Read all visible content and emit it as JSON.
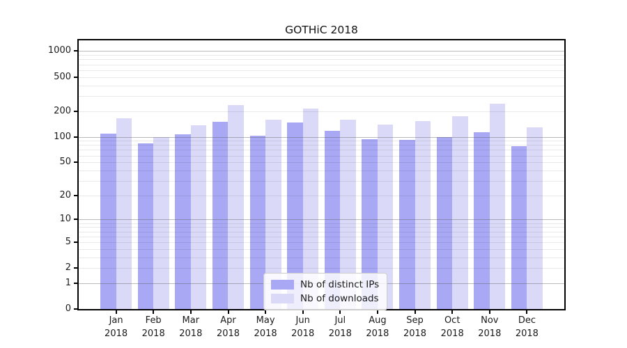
{
  "chart_data": {
    "type": "bar",
    "title": "GOTHiC 2018",
    "scale": "log1p",
    "grid": "on",
    "legend_position": "lower center",
    "categories": [
      "Jan",
      "Feb",
      "Mar",
      "Apr",
      "May",
      "Jun",
      "Jul",
      "Aug",
      "Sep",
      "Oct",
      "Nov",
      "Dec"
    ],
    "category_year": "2018",
    "series": [
      {
        "name": "Nb of distinct IPs",
        "color": "#a8a8f5",
        "values": [
          108,
          84,
          107,
          149,
          102,
          148,
          117,
          94,
          92,
          100,
          113,
          78
        ]
      },
      {
        "name": "Nb of downloads",
        "color": "#dadaf8",
        "values": [
          165,
          99,
          136,
          237,
          158,
          213,
          159,
          138,
          152,
          175,
          245,
          130
        ]
      }
    ],
    "y_ticks": [
      0,
      1,
      2,
      5,
      10,
      20,
      50,
      100,
      200,
      500,
      1000
    ],
    "ylim": [
      0,
      1335
    ],
    "xlabel": "",
    "ylabel": ""
  }
}
